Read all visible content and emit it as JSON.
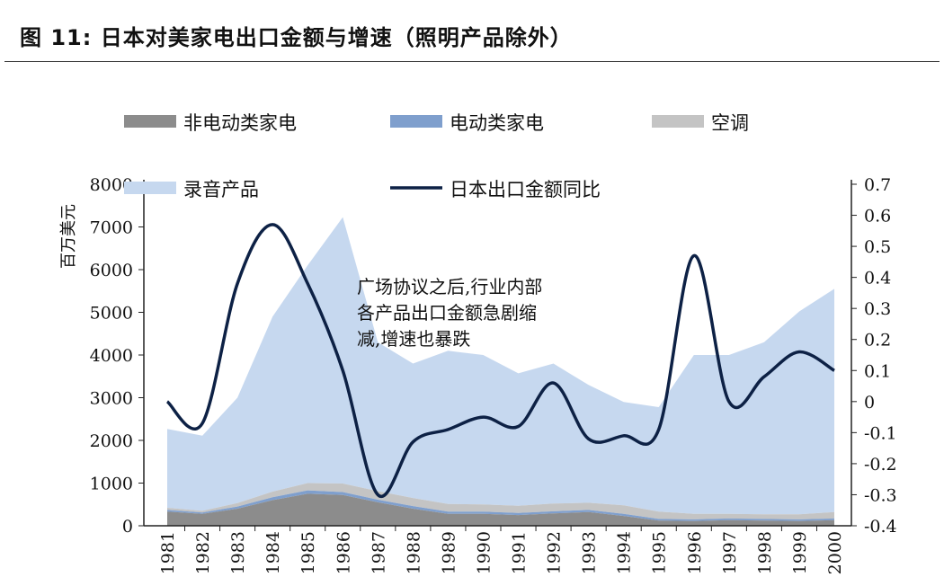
{
  "figure": {
    "title": "图 11:  日本对美家电出口金额与增速（照明产品除外）"
  },
  "chart_data": {
    "type": "area",
    "title": "日本对美家电出口金额与增速（照明产品除外）",
    "ylabel": "百万美元",
    "y2label": "",
    "ylim": [
      0,
      8000
    ],
    "y2lim": [
      -0.4,
      0.7
    ],
    "yticks": [
      0,
      1000,
      2000,
      3000,
      4000,
      5000,
      6000,
      7000,
      8000
    ],
    "y2ticks": [
      -0.4,
      -0.3,
      -0.2,
      -0.1,
      0,
      0.1,
      0.2,
      0.3,
      0.4,
      0.5,
      0.6,
      0.7
    ],
    "ytick_labels": [
      "0",
      "1000",
      "2000",
      "3000",
      "4000",
      "5000",
      "6000",
      "7000",
      "8000"
    ],
    "y2tick_labels": [
      "-0.4",
      "-0.3",
      "-0.2",
      "-0.1",
      "0",
      "0.1",
      "0.2",
      "0.3",
      "0.4",
      "0.5",
      "0.6",
      "0.7"
    ],
    "categories": [
      "1981",
      "1982",
      "1983",
      "1984",
      "1985",
      "1986",
      "1987",
      "1988",
      "1989",
      "1990",
      "1991",
      "1992",
      "1993",
      "1994",
      "1995",
      "1996",
      "1997",
      "1998",
      "1999",
      "2000"
    ],
    "stacked": true,
    "series": [
      {
        "name": "非电动类家电",
        "kind": "area",
        "color": "#8c8c8c",
        "values": [
          330,
          280,
          400,
          600,
          750,
          720,
          550,
          400,
          280,
          280,
          250,
          290,
          320,
          230,
          120,
          110,
          130,
          120,
          110,
          130
        ]
      },
      {
        "name": "电动类家电",
        "kind": "area",
        "color": "#7f9fcd",
        "values": [
          40,
          30,
          50,
          70,
          80,
          70,
          60,
          60,
          50,
          50,
          50,
          50,
          50,
          50,
          40,
          40,
          40,
          40,
          40,
          40
        ]
      },
      {
        "name": "空调",
        "kind": "area",
        "color": "#c4c4c4",
        "values": [
          50,
          40,
          80,
          130,
          170,
          200,
          200,
          190,
          180,
          170,
          170,
          180,
          170,
          200,
          170,
          130,
          110,
          110,
          120,
          150
        ]
      },
      {
        "name": "录音产品",
        "kind": "area",
        "color": "#c6d8ef",
        "values": [
          1850,
          1760,
          2470,
          4100,
          5100,
          6240,
          3490,
          3150,
          3590,
          3500,
          3100,
          3280,
          2760,
          2420,
          2450,
          3720,
          3720,
          4030,
          4750,
          5230
        ]
      },
      {
        "name": "日本出口金额同比",
        "kind": "line",
        "axis": "right",
        "color": "#0d2145",
        "values": [
          0.0,
          -0.07,
          0.38,
          0.57,
          0.38,
          0.1,
          -0.3,
          -0.13,
          -0.09,
          -0.05,
          -0.08,
          0.06,
          -0.12,
          -0.11,
          -0.09,
          0.47,
          0.0,
          0.08,
          0.16,
          0.1
        ]
      }
    ],
    "legend": [
      {
        "label": "非电动类家电",
        "color": "#8c8c8c",
        "kind": "bar"
      },
      {
        "label": "电动类家电",
        "color": "#7f9fcd",
        "kind": "bar"
      },
      {
        "label": "空调",
        "color": "#c4c4c4",
        "kind": "bar"
      },
      {
        "label": "录音产品",
        "color": "#c6d8ef",
        "kind": "bar"
      },
      {
        "label": "日本出口金额同比",
        "color": "#0d2145",
        "kind": "line"
      }
    ],
    "annotation": [
      "广场协议之后,行业内部",
      "各产品出口金额急剧缩",
      "减,增速也暴跌"
    ]
  }
}
